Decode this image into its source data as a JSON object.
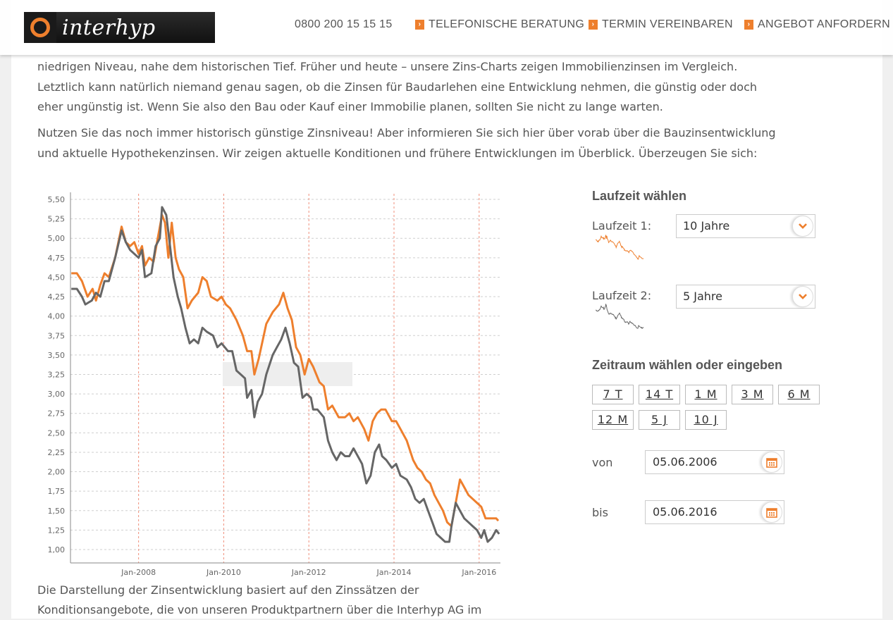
{
  "header": {
    "logo_text": "interhyp",
    "phone": "0800 200 15 15 15",
    "nav": [
      "TELEFONISCHE BERATUNG",
      "TERMIN VEREINBAREN",
      "ANGEBOT ANFORDERN"
    ]
  },
  "intro": {
    "para1": [
      "niedrigen Niveau, nahe dem historischen Tief. Früher und heute – unsere Zins-Charts zeigen Immobilienzinsen im Vergleich.",
      "Letztlich kann natürlich niemand genau sagen, ob die Zinsen für Baudarlehen eine Entwicklung nehmen, die günstig oder doch",
      "eher ungünstig ist. Wenn Sie also den Bau oder Kauf einer Immobilie planen, sollten Sie nicht zu lange warten."
    ],
    "para2": [
      "Nutzen Sie das noch immer historisch günstige Zinsniveau! Aber informieren Sie sich hier über vorab über die Bauzinsentwicklung",
      "und aktuelle Hypothekenzinsen. Wir zeigen aktuelle Konditionen und frühere Entwicklungen im Überblick. Überzeugen Sie sich:"
    ]
  },
  "chart_data": {
    "type": "line",
    "title": "",
    "xlabel": "",
    "ylabel": "",
    "ylim": [
      1.0,
      5.5
    ],
    "xlim": [
      2006.4,
      2016.5
    ],
    "yticks": [
      "1,00",
      "1,25",
      "1,50",
      "1,75",
      "2,00",
      "2,25",
      "2,50",
      "2,75",
      "3,00",
      "3,25",
      "3,50",
      "3,75",
      "4,00",
      "4,25",
      "4,50",
      "4,75",
      "5,00",
      "5,25",
      "5,50"
    ],
    "xticks": [
      {
        "label": "Jan-2008",
        "x": 2008.0
      },
      {
        "label": "Jan-2010",
        "x": 2010.0
      },
      {
        "label": "Jan-2012",
        "x": 2012.0
      },
      {
        "label": "Jan-2014",
        "x": 2014.0
      },
      {
        "label": "Jan-2016",
        "x": 2016.0
      }
    ],
    "grid": true,
    "series": [
      {
        "color": "#ee7f2d",
        "points": [
          [
            2006.42,
            4.55
          ],
          [
            2006.55,
            4.55
          ],
          [
            2006.67,
            4.45
          ],
          [
            2006.8,
            4.25
          ],
          [
            2006.92,
            4.35
          ],
          [
            2007.0,
            4.2
          ],
          [
            2007.1,
            4.4
          ],
          [
            2007.2,
            4.55
          ],
          [
            2007.3,
            4.5
          ],
          [
            2007.45,
            4.75
          ],
          [
            2007.6,
            5.15
          ],
          [
            2007.7,
            4.95
          ],
          [
            2007.8,
            4.9
          ],
          [
            2007.9,
            4.95
          ],
          [
            2008.0,
            4.8
          ],
          [
            2008.08,
            4.9
          ],
          [
            2008.15,
            4.65
          ],
          [
            2008.25,
            4.75
          ],
          [
            2008.35,
            4.7
          ],
          [
            2008.45,
            5.0
          ],
          [
            2008.55,
            5.3
          ],
          [
            2008.62,
            5.2
          ],
          [
            2008.7,
            4.75
          ],
          [
            2008.78,
            5.2
          ],
          [
            2008.87,
            4.75
          ],
          [
            2008.95,
            4.6
          ],
          [
            2009.05,
            4.5
          ],
          [
            2009.15,
            4.1
          ],
          [
            2009.25,
            4.2
          ],
          [
            2009.4,
            4.3
          ],
          [
            2009.5,
            4.5
          ],
          [
            2009.6,
            4.45
          ],
          [
            2009.7,
            4.25
          ],
          [
            2009.85,
            4.2
          ],
          [
            2009.95,
            4.25
          ],
          [
            2010.05,
            4.15
          ],
          [
            2010.15,
            4.1
          ],
          [
            2010.3,
            3.95
          ],
          [
            2010.45,
            3.75
          ],
          [
            2010.55,
            3.55
          ],
          [
            2010.65,
            3.55
          ],
          [
            2010.72,
            3.25
          ],
          [
            2010.82,
            3.45
          ],
          [
            2010.92,
            3.7
          ],
          [
            2011.0,
            3.9
          ],
          [
            2011.15,
            4.05
          ],
          [
            2011.3,
            4.15
          ],
          [
            2011.4,
            4.3
          ],
          [
            2011.5,
            4.1
          ],
          [
            2011.6,
            3.95
          ],
          [
            2011.7,
            3.6
          ],
          [
            2011.8,
            3.5
          ],
          [
            2011.9,
            3.25
          ],
          [
            2012.0,
            3.45
          ],
          [
            2012.1,
            3.35
          ],
          [
            2012.25,
            3.15
          ],
          [
            2012.35,
            3.1
          ],
          [
            2012.45,
            2.8
          ],
          [
            2012.55,
            2.85
          ],
          [
            2012.7,
            2.7
          ],
          [
            2012.85,
            2.7
          ],
          [
            2012.95,
            2.75
          ],
          [
            2013.05,
            2.65
          ],
          [
            2013.15,
            2.7
          ],
          [
            2013.3,
            2.55
          ],
          [
            2013.4,
            2.4
          ],
          [
            2013.5,
            2.65
          ],
          [
            2013.6,
            2.75
          ],
          [
            2013.7,
            2.8
          ],
          [
            2013.8,
            2.8
          ],
          [
            2013.95,
            2.65
          ],
          [
            2014.05,
            2.65
          ],
          [
            2014.15,
            2.55
          ],
          [
            2014.3,
            2.4
          ],
          [
            2014.45,
            2.15
          ],
          [
            2014.55,
            2.05
          ],
          [
            2014.65,
            2.0
          ],
          [
            2014.75,
            1.9
          ],
          [
            2014.85,
            1.85
          ],
          [
            2014.95,
            1.7
          ],
          [
            2015.05,
            1.6
          ],
          [
            2015.15,
            1.5
          ],
          [
            2015.25,
            1.35
          ],
          [
            2015.35,
            1.3
          ],
          [
            2015.45,
            1.6
          ],
          [
            2015.55,
            1.9
          ],
          [
            2015.65,
            1.8
          ],
          [
            2015.75,
            1.7
          ],
          [
            2015.85,
            1.65
          ],
          [
            2015.95,
            1.6
          ],
          [
            2016.05,
            1.55
          ],
          [
            2016.15,
            1.4
          ],
          [
            2016.25,
            1.4
          ],
          [
            2016.4,
            1.4
          ],
          [
            2016.45,
            1.37
          ]
        ]
      },
      {
        "color": "#666666",
        "points": [
          [
            2006.42,
            4.35
          ],
          [
            2006.55,
            4.35
          ],
          [
            2006.67,
            4.25
          ],
          [
            2006.75,
            4.15
          ],
          [
            2006.9,
            4.2
          ],
          [
            2007.0,
            4.3
          ],
          [
            2007.1,
            4.25
          ],
          [
            2007.2,
            4.45
          ],
          [
            2007.3,
            4.45
          ],
          [
            2007.45,
            4.75
          ],
          [
            2007.6,
            5.1
          ],
          [
            2007.7,
            4.95
          ],
          [
            2007.8,
            4.85
          ],
          [
            2007.9,
            4.8
          ],
          [
            2008.0,
            4.75
          ],
          [
            2008.08,
            4.85
          ],
          [
            2008.15,
            4.5
          ],
          [
            2008.3,
            4.55
          ],
          [
            2008.4,
            4.9
          ],
          [
            2008.5,
            5.0
          ],
          [
            2008.55,
            5.4
          ],
          [
            2008.65,
            5.3
          ],
          [
            2008.75,
            4.85
          ],
          [
            2008.82,
            4.5
          ],
          [
            2008.92,
            4.25
          ],
          [
            2009.0,
            4.1
          ],
          [
            2009.1,
            3.85
          ],
          [
            2009.2,
            3.65
          ],
          [
            2009.3,
            3.7
          ],
          [
            2009.4,
            3.65
          ],
          [
            2009.5,
            3.85
          ],
          [
            2009.6,
            3.8
          ],
          [
            2009.75,
            3.75
          ],
          [
            2009.85,
            3.6
          ],
          [
            2009.95,
            3.65
          ],
          [
            2010.1,
            3.55
          ],
          [
            2010.2,
            3.55
          ],
          [
            2010.3,
            3.3
          ],
          [
            2010.4,
            3.25
          ],
          [
            2010.5,
            3.2
          ],
          [
            2010.55,
            2.95
          ],
          [
            2010.65,
            3.05
          ],
          [
            2010.72,
            2.7
          ],
          [
            2010.8,
            2.9
          ],
          [
            2010.9,
            3.0
          ],
          [
            2011.0,
            3.25
          ],
          [
            2011.15,
            3.5
          ],
          [
            2011.25,
            3.6
          ],
          [
            2011.35,
            3.7
          ],
          [
            2011.45,
            3.85
          ],
          [
            2011.55,
            3.65
          ],
          [
            2011.65,
            3.4
          ],
          [
            2011.75,
            3.35
          ],
          [
            2011.85,
            2.95
          ],
          [
            2011.95,
            3.0
          ],
          [
            2012.05,
            2.95
          ],
          [
            2012.1,
            2.8
          ],
          [
            2012.2,
            2.8
          ],
          [
            2012.35,
            2.7
          ],
          [
            2012.45,
            2.4
          ],
          [
            2012.55,
            2.25
          ],
          [
            2012.65,
            2.15
          ],
          [
            2012.75,
            2.25
          ],
          [
            2012.85,
            2.2
          ],
          [
            2012.95,
            2.2
          ],
          [
            2013.05,
            2.3
          ],
          [
            2013.15,
            2.2
          ],
          [
            2013.25,
            2.1
          ],
          [
            2013.35,
            1.85
          ],
          [
            2013.45,
            1.95
          ],
          [
            2013.55,
            2.25
          ],
          [
            2013.65,
            2.35
          ],
          [
            2013.72,
            2.2
          ],
          [
            2013.82,
            2.15
          ],
          [
            2013.95,
            2.05
          ],
          [
            2014.05,
            2.1
          ],
          [
            2014.15,
            1.95
          ],
          [
            2014.3,
            1.9
          ],
          [
            2014.4,
            1.8
          ],
          [
            2014.5,
            1.65
          ],
          [
            2014.6,
            1.6
          ],
          [
            2014.7,
            1.65
          ],
          [
            2014.8,
            1.5
          ],
          [
            2014.9,
            1.35
          ],
          [
            2015.0,
            1.2
          ],
          [
            2015.1,
            1.15
          ],
          [
            2015.2,
            1.1
          ],
          [
            2015.3,
            1.1
          ],
          [
            2015.35,
            1.3
          ],
          [
            2015.45,
            1.6
          ],
          [
            2015.55,
            1.5
          ],
          [
            2015.65,
            1.4
          ],
          [
            2015.75,
            1.35
          ],
          [
            2015.85,
            1.3
          ],
          [
            2015.95,
            1.25
          ],
          [
            2016.05,
            1.15
          ],
          [
            2016.12,
            1.25
          ],
          [
            2016.2,
            1.1
          ],
          [
            2016.3,
            1.15
          ],
          [
            2016.4,
            1.25
          ],
          [
            2016.47,
            1.2
          ]
        ]
      }
    ]
  },
  "controls": {
    "laufzeit_title": "Laufzeit wählen",
    "laufzeit1_label": "Laufzeit 1:",
    "laufzeit1_value": "10 Jahre",
    "laufzeit1_color": "#ee7f2d",
    "laufzeit2_label": "Laufzeit 2:",
    "laufzeit2_value": "5 Jahre",
    "laufzeit2_color": "#666666",
    "zeitraum_title": "Zeitraum wählen oder eingeben",
    "range_buttons": [
      "7 T",
      "14 T",
      "1 M",
      "3 M",
      "6 M",
      "12 M",
      "5 J",
      "10 J"
    ],
    "von_label": "von",
    "von_value": "05.06.2006",
    "bis_label": "bis",
    "bis_value": "05.06.2016"
  },
  "caption": [
    "Die Darstellung der Zinsentwicklung basiert auf den Zinssätzen der",
    "Konditionsangebote, die von unseren Produktpartnern über die Interhyp AG im"
  ],
  "icons": {
    "dropdown": "chevron-down-icon",
    "calendar": "calendar-icon",
    "nav_arrow": "arrow-right-icon"
  }
}
